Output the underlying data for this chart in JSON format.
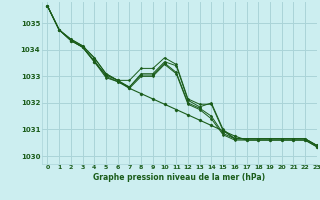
{
  "title": "Graphe pression niveau de la mer (hPa)",
  "bg_color": "#cceef0",
  "grid_color": "#aad4d8",
  "line_color": "#1a5c1a",
  "label_color": "#1a5c1a",
  "xlim": [
    -0.5,
    23
  ],
  "ylim": [
    1029.7,
    1035.8
  ],
  "yticks": [
    1030,
    1031,
    1032,
    1033,
    1034,
    1035
  ],
  "xticks": [
    0,
    1,
    2,
    3,
    4,
    5,
    6,
    7,
    8,
    9,
    10,
    11,
    12,
    13,
    14,
    15,
    16,
    17,
    18,
    19,
    20,
    21,
    22,
    23
  ],
  "series": [
    [
      1035.65,
      1034.75,
      1034.4,
      1034.15,
      1033.7,
      1033.1,
      1032.85,
      1032.6,
      1033.1,
      1033.1,
      1033.55,
      1033.4,
      1032.1,
      1031.85,
      1032.0,
      1031.0,
      1030.65,
      1030.65,
      1030.65,
      1030.65,
      1030.65,
      1030.65,
      1030.65,
      1030.4
    ],
    [
      1035.65,
      1034.75,
      1034.4,
      1034.15,
      1033.7,
      1033.1,
      1032.85,
      1032.85,
      1033.3,
      1033.3,
      1033.7,
      1033.45,
      1032.15,
      1031.95,
      1031.95,
      1030.95,
      1030.65,
      1030.65,
      1030.65,
      1030.65,
      1030.65,
      1030.65,
      1030.65,
      1030.4
    ],
    [
      1035.65,
      1034.75,
      1034.35,
      1034.1,
      1033.6,
      1033.0,
      1032.8,
      1032.6,
      1033.05,
      1033.05,
      1033.5,
      1033.15,
      1032.0,
      1031.8,
      1031.5,
      1030.85,
      1030.65,
      1030.65,
      1030.65,
      1030.65,
      1030.65,
      1030.65,
      1030.65,
      1030.4
    ],
    [
      1035.65,
      1034.75,
      1034.35,
      1034.1,
      1033.55,
      1032.95,
      1032.8,
      1032.55,
      1033.0,
      1033.0,
      1033.45,
      1033.1,
      1031.95,
      1031.75,
      1031.4,
      1030.8,
      1030.6,
      1030.6,
      1030.6,
      1030.6,
      1030.6,
      1030.6,
      1030.6,
      1030.35
    ]
  ],
  "straight_line": [
    1035.65,
    1034.75,
    1034.35,
    1034.1,
    1033.55,
    1033.05,
    1032.85,
    1032.55,
    1032.35,
    1032.15,
    1031.95,
    1031.75,
    1031.55,
    1031.35,
    1031.15,
    1030.95,
    1030.75,
    1030.6,
    1030.6,
    1030.6,
    1030.6,
    1030.6,
    1030.6,
    1030.35
  ]
}
